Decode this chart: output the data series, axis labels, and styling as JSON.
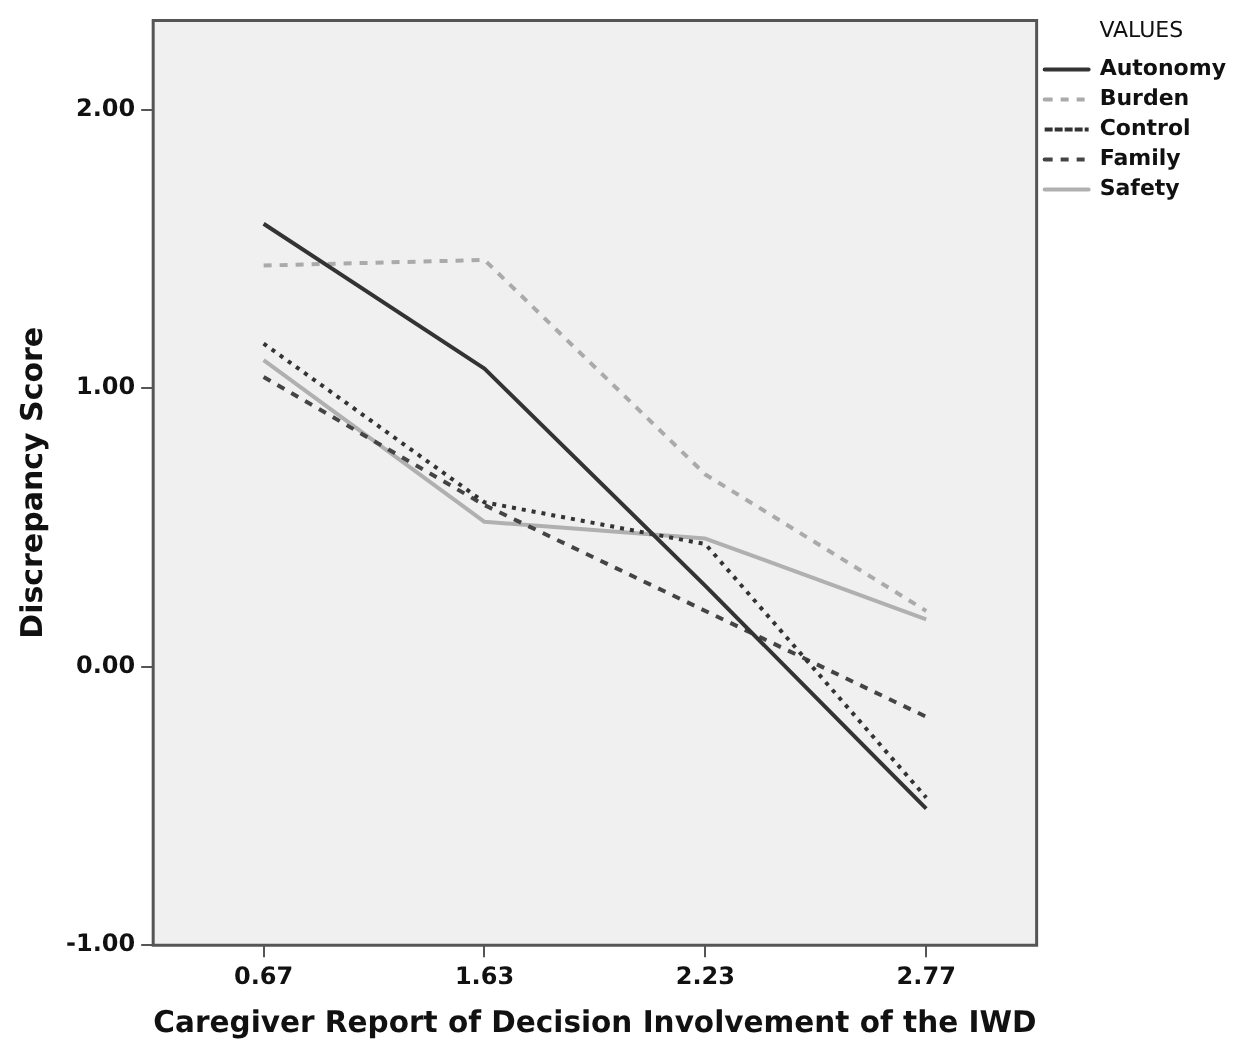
{
  "chart_data": {
    "type": "line",
    "xlabel": "Caregiver Report of Decision Involvement of the IWD",
    "ylabel": "Discrepancy Score",
    "legend_title": "VALUES",
    "legend": "right",
    "grid": false,
    "marker": "none",
    "categories": [
      "0.67",
      "1.63",
      "2.23",
      "2.77"
    ],
    "ylim": [
      -1,
      2.32
    ],
    "yticks": [
      {
        "value": -1,
        "label": "-1.00"
      },
      {
        "value": 0,
        "label": "0.00"
      },
      {
        "value": 1,
        "label": "1.00"
      },
      {
        "value": 2,
        "label": "2.00"
      }
    ],
    "series": [
      {
        "name": "Autonomy",
        "color": "#333333",
        "line_style": "solid",
        "values": [
          1.59,
          1.07,
          0.29,
          -0.51
        ]
      },
      {
        "name": "Burden",
        "color": "#aaaaaa",
        "line_style": "dashed",
        "values": [
          1.44,
          1.46,
          0.69,
          0.2
        ]
      },
      {
        "name": "Control",
        "color": "#333333",
        "line_style": "dotted",
        "values": [
          1.16,
          0.59,
          0.44,
          -0.47
        ]
      },
      {
        "name": "Family",
        "color": "#444444",
        "line_style": "dashed",
        "values": [
          1.04,
          0.58,
          0.2,
          -0.18
        ]
      },
      {
        "name": "Safety",
        "color": "#b0b0b0",
        "line_style": "solid",
        "values": [
          1.1,
          0.52,
          0.46,
          0.17
        ]
      }
    ]
  }
}
